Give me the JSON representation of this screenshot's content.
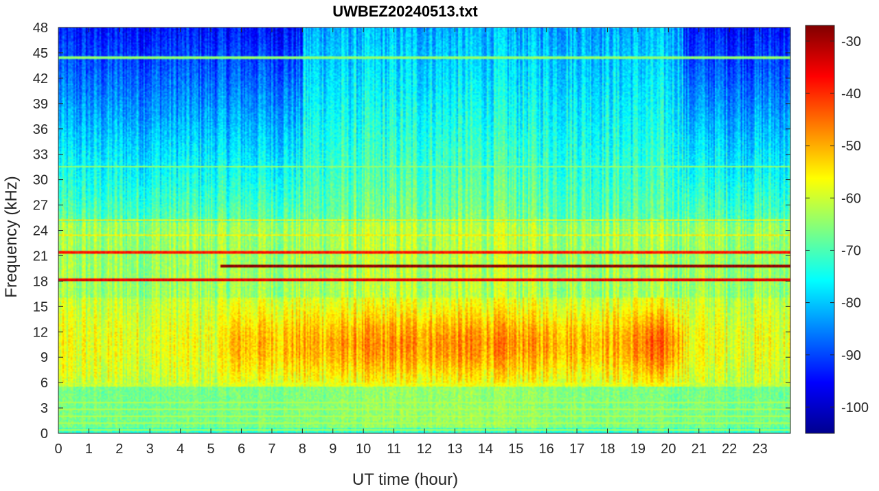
{
  "chart_data": {
    "type": "heatmap",
    "title": "UWBEZ20240513.txt",
    "xlabel": "UT time (hour)",
    "ylabel": "Frequency (kHz)",
    "xlim": [
      0,
      24
    ],
    "ylim": [
      0,
      48
    ],
    "x_ticks": [
      "0",
      "1",
      "2",
      "3",
      "4",
      "5",
      "6",
      "7",
      "8",
      "9",
      "10",
      "11",
      "12",
      "13",
      "14",
      "15",
      "16",
      "17",
      "18",
      "19",
      "20",
      "21",
      "22",
      "23"
    ],
    "y_ticks": [
      "0",
      "3",
      "6",
      "9",
      "12",
      "15",
      "18",
      "21",
      "24",
      "27",
      "30",
      "33",
      "36",
      "39",
      "42",
      "45",
      "48"
    ],
    "colorbar": {
      "colormap": "jet",
      "range": [
        -105,
        -27
      ],
      "ticks": [
        "-30",
        "-40",
        "-50",
        "-60",
        "-70",
        "-80",
        "-90",
        "-100"
      ]
    },
    "features": {
      "broadband_band_khz": [
        6,
        16
      ],
      "broadband_peak_level": -45,
      "background_level_high_freq": -90,
      "narrowband_lines": [
        {
          "freq_khz": 18.2,
          "x_range": [
            0,
            24
          ],
          "level": -35
        },
        {
          "freq_khz": 19.8,
          "x_range": [
            5.3,
            24
          ],
          "level": -28
        },
        {
          "freq_khz": 21.4,
          "x_range": [
            0,
            24
          ],
          "level": -38
        },
        {
          "freq_khz": 23.4,
          "x_range": [
            0,
            24
          ],
          "level": -55
        },
        {
          "freq_khz": 25.2,
          "x_range": [
            0,
            24
          ],
          "level": -55
        },
        {
          "freq_khz": 31.5,
          "x_range": [
            0,
            24
          ],
          "level": -65
        },
        {
          "freq_khz": 44.4,
          "x_range": [
            0,
            24
          ],
          "level": -65
        }
      ]
    }
  }
}
